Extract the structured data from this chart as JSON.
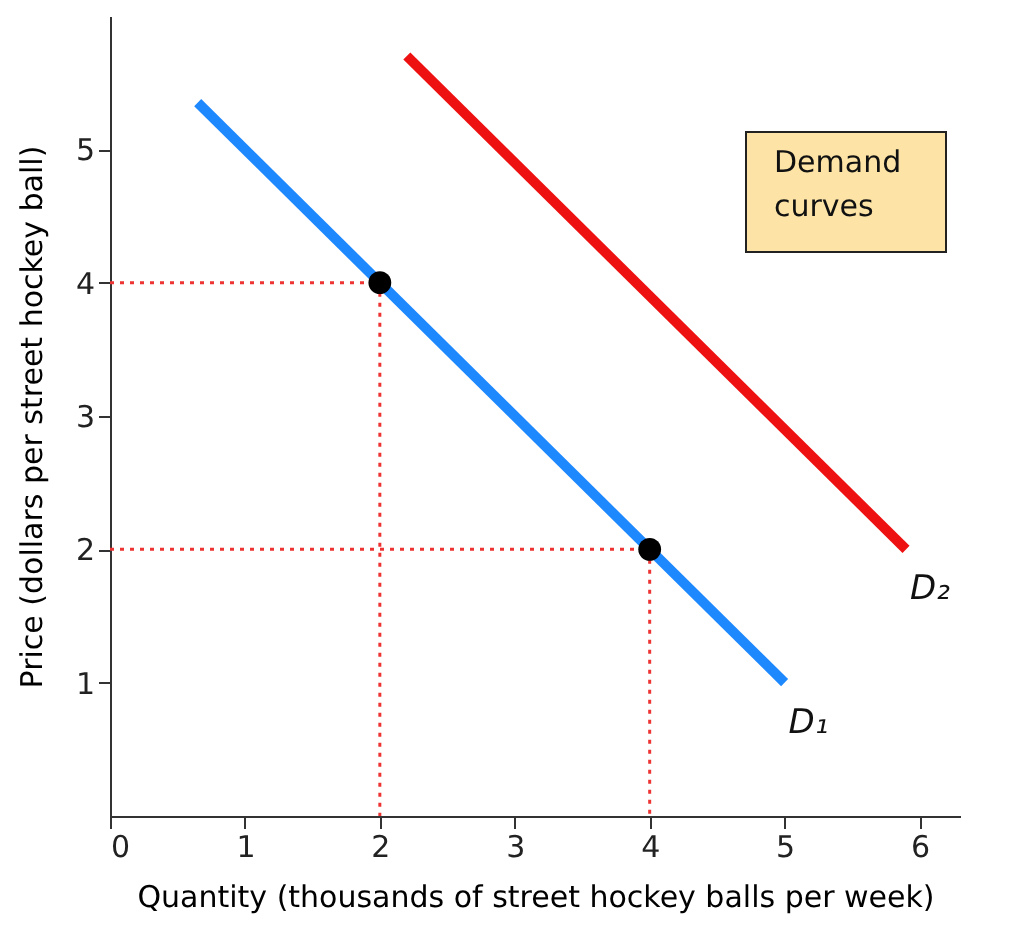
{
  "chart_data": {
    "type": "line",
    "xlabel": "Quantity (thousands of street hockey balls per week)",
    "ylabel": "Price (dollars per street hockey ball)",
    "xlim": [
      0,
      6.3
    ],
    "ylim": [
      0,
      6
    ],
    "xticks": [
      0,
      1,
      2,
      3,
      4,
      5,
      6
    ],
    "yticks": [
      1,
      2,
      3,
      4,
      5
    ],
    "grid": false,
    "annotations": [
      "Demand curves"
    ],
    "series": [
      {
        "name": "D₁",
        "line_style": "solid",
        "color": "#1e88ff",
        "x": [
          0.65,
          5.0
        ],
        "values": [
          5.35,
          1.0
        ]
      },
      {
        "name": "D₂",
        "line_style": "solid",
        "color": "#ee1111",
        "x": [
          2.2,
          5.9
        ],
        "values": [
          5.7,
          2.0
        ]
      },
      {
        "line_style": "dotted",
        "color": "#ee3333",
        "x": [
          0,
          2,
          2
        ],
        "values": [
          4,
          4,
          0
        ]
      },
      {
        "line_style": "dotted",
        "color": "#ee3333",
        "x": [
          0,
          4,
          4
        ],
        "values": [
          2,
          2,
          0
        ]
      },
      {
        "type": "scatter",
        "marker": "circle",
        "color": "#000000",
        "x": [
          2,
          4
        ],
        "values": [
          4,
          2
        ]
      }
    ]
  }
}
